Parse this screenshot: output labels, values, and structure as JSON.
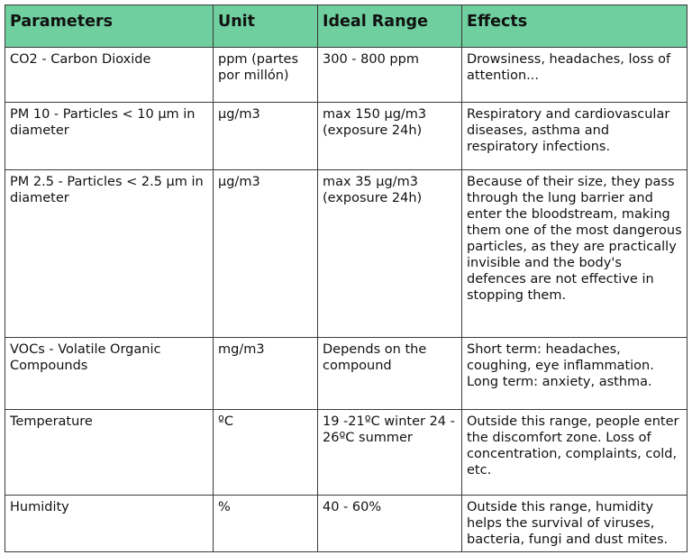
{
  "table": {
    "headers": [
      "Parameters",
      "Unit",
      "Ideal Range",
      "Effects"
    ],
    "rows": [
      {
        "parameter": "CO2 - Carbon Dioxide",
        "unit": "ppm (partes por millón)",
        "range": "300 - 800 ppm",
        "effects": "Drowsiness, headaches, loss of attention..."
      },
      {
        "parameter": "PM 10 - Particles < 10 µm in diameter",
        "unit": "µg/m3",
        "range": "max 150 µg/m3 (exposure 24h)",
        "effects": "Respiratory and cardiovascular diseases, asthma and respiratory infections."
      },
      {
        "parameter": "PM 2.5 - Particles < 2.5 µm in diameter",
        "unit": "µg/m3",
        "range": "max 35 µg/m3 (exposure 24h)",
        "effects": "Because of their size, they pass through the lung barrier and enter the bloodstream, making them one of the most dangerous particles, as they are practically invisible and the body's defences are not effective in stopping them."
      },
      {
        "parameter": "VOCs - Volatile Organic Compounds",
        "unit": "mg/m3",
        "range": "Depends on the compound",
        "effects": "Short term: headaches, coughing, eye inflammation. Long term: anxiety, asthma."
      },
      {
        "parameter": "Temperature",
        "unit": "ºC",
        "range": "19 -21ºC winter 24 - 26ºC summer",
        "effects": "Outside this range, people enter the discomfort zone. Loss of concentration, complaints, cold, etc."
      },
      {
        "parameter": "Humidity",
        "unit": "%",
        "range": "40 - 60%",
        "effects": "Outside this range, humidity helps the survival of viruses, bacteria, fungi and dust mites."
      }
    ]
  }
}
